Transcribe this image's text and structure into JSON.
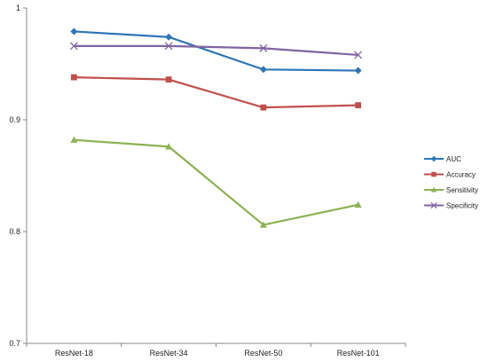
{
  "chart_data": {
    "type": "line",
    "title": "",
    "xlabel": "",
    "ylabel": "",
    "categories": [
      "ResNet-18",
      "ResNet-34",
      "ResNet-50",
      "ResNet-101"
    ],
    "ylim": [
      0.7,
      1.0
    ],
    "yticks": [
      "0.7",
      "0.8",
      "0.9",
      "1"
    ],
    "ytick_values": [
      0.7,
      0.8,
      0.9,
      1.0
    ],
    "grid": false,
    "legend_position": "right",
    "series": [
      {
        "name": "AUC",
        "values": [
          0.979,
          0.974,
          0.945,
          0.944
        ],
        "color": "#2E75B6",
        "marker": "diamond"
      },
      {
        "name": "Accuracy",
        "values": [
          0.938,
          0.936,
          0.911,
          0.913
        ],
        "color": "#C0504D",
        "marker": "square"
      },
      {
        "name": "Sensitivity",
        "values": [
          0.882,
          0.876,
          0.806,
          0.824
        ],
        "color": "#8DB255",
        "marker": "triangle"
      },
      {
        "name": "Specificity",
        "values": [
          0.966,
          0.966,
          0.964,
          0.958
        ],
        "color": "#8064A2",
        "marker": "x"
      }
    ]
  }
}
